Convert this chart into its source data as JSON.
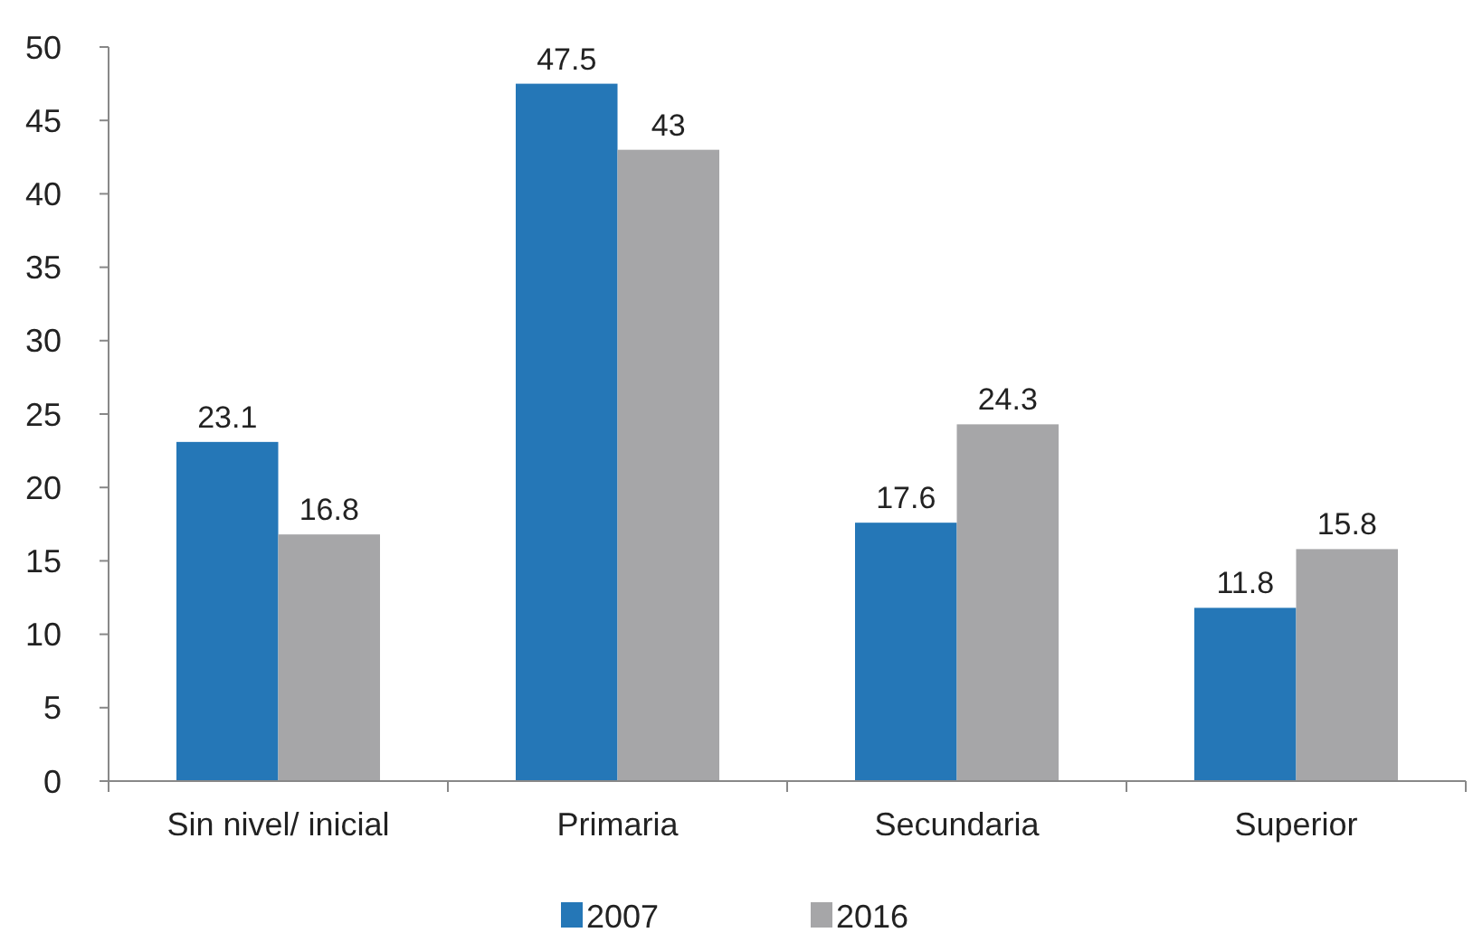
{
  "chart_data": {
    "type": "bar",
    "categories": [
      "Sin nivel/ inicial",
      "Primaria",
      "Secundaria",
      "Superior"
    ],
    "series": [
      {
        "name": "2007",
        "color": "#2577b7",
        "values": [
          23.1,
          47.5,
          17.6,
          11.8
        ]
      },
      {
        "name": "2016",
        "color": "#a6a6a8",
        "values": [
          16.8,
          43,
          24.3,
          15.8
        ]
      }
    ],
    "ylim": [
      0,
      50
    ],
    "yticks": [
      0,
      5,
      10,
      15,
      20,
      25,
      30,
      35,
      40,
      45,
      50
    ],
    "grid": false,
    "legend": "bottom",
    "data_labels": true
  }
}
